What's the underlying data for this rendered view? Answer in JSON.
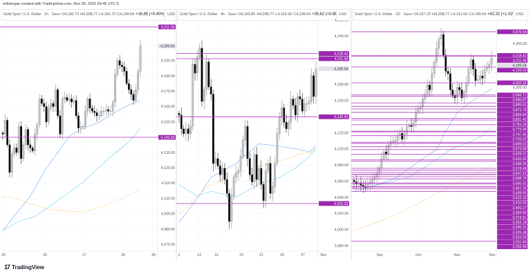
{
  "attribution": "erikbregar created with TradingView.com, Nov 28, 2025 09:45 UTC-5",
  "footer": {
    "logo_text": "TradingView",
    "logo_icon": "tradingview-logo-icon"
  },
  "colors": {
    "level_line": "#b84bc4",
    "level_label": "#9c27b0",
    "bull_candle": "#c4c6cc",
    "bear_candle": "#000000",
    "ma_blue": "#7fb8f0",
    "ma_cyan": "#7ed6ef",
    "ma_orange": "#ffd9a0",
    "last_price_label": "#e0e3eb",
    "grid": "#f0f3fa"
  },
  "chart_data": [
    {
      "type": "candlestick",
      "title": "Gold Spot / U.S. Dollar · 1h · Saxo",
      "open": "O4,182.73",
      "high": "H4,208.77",
      "low": "L4,182.73",
      "close": "C4,199.54",
      "change": "+16.85 (+0.40%)",
      "currency": "USD",
      "last_price": "4,199.54",
      "y_ticks": [
        "4,200.00",
        "4,190.00",
        "4,180.00",
        "4,170.00",
        "4,160.00",
        "4,150.00",
        "4,130.00",
        "4,120.00",
        "4,110.00",
        "4,100.00",
        "4,090.00",
        "4,080.00",
        "4,070.00"
      ],
      "x_ticks": [
        "25",
        "26",
        "27",
        "28",
        "30"
      ],
      "levels": [
        "4,218.42",
        "4,211.99",
        "4,139.93"
      ],
      "grid": true,
      "closes": [
        4142,
        4151,
        4135,
        4117,
        4129,
        4133,
        4130,
        4147,
        4126,
        4135,
        4145,
        4135,
        4133,
        4131,
        4142,
        4148,
        4165,
        4162,
        4160,
        4150,
        4159,
        4162,
        4160,
        4171,
        4154,
        4142,
        4165,
        4166,
        4164,
        4165,
        4163,
        4164,
        4154,
        4146,
        4147,
        4147,
        4157,
        4165,
        4159,
        4157,
        4156,
        4154,
        4154,
        4157,
        4157,
        4158,
        4157,
        4157,
        4163,
        4181,
        4190,
        4187,
        4186,
        4183,
        4175,
        4171,
        4168,
        4164,
        4171,
        4183,
        4199.54
      ],
      "moving_averages": [
        {
          "color": "#7fb8f0",
          "points": [
            [
              0,
              4079.1
            ],
            [
              12,
              4101.6
            ],
            [
              19,
              4119.7
            ],
            [
              29,
              4140.7
            ],
            [
              34,
              4145.2
            ],
            [
              42,
              4149.7
            ],
            [
              50,
              4157.2
            ],
            [
              56,
              4161.7
            ],
            [
              60,
              4163.9
            ]
          ]
        },
        {
          "color": "#7ed6ef",
          "points": [
            [
              0,
              4079.1
            ],
            [
              7,
              4085.1
            ],
            [
              14,
              4088.1
            ],
            [
              24,
              4098.6
            ],
            [
              35,
              4110.6
            ],
            [
              47,
              4127.2
            ],
            [
              55,
              4136.9
            ],
            [
              60,
              4145.9
            ]
          ]
        },
        {
          "color": "#ffd9a0",
          "points": [
            [
              0,
              4100.9
            ],
            [
              3,
              4101.3
            ],
            [
              11,
              4097.1
            ],
            [
              21,
              4092.6
            ],
            [
              35,
              4091.1
            ],
            [
              45,
              4095.6
            ],
            [
              52,
              4100.1
            ],
            [
              60,
              4106.1
            ]
          ]
        }
      ]
    },
    {
      "type": "candlestick",
      "title": "Gold Spot / U.S. Dollar · 4h · Saxo",
      "open": "O4,163.85",
      "high": "H4,208.77",
      "low": "L4,162.93",
      "close": "C4,199.54",
      "change": "+35.62 (+0.86%)",
      "currency": "USD",
      "last_price": "4,199.54",
      "y_ticks": [
        "4,260.00",
        "4,240.00",
        "4,220.00",
        "4,200.00",
        "4,180.00",
        "4,160.00",
        "4,140.00",
        "4,120.00",
        "4,100.00",
        "4,080.00",
        "4,060.00",
        "4,040.00",
        "4,020.00",
        "4,000.00",
        "3,980.00"
      ],
      "x_ticks": [
        "1",
        "13",
        "16",
        "19",
        "21",
        "25",
        "27",
        "Dec"
      ],
      "levels": [
        "4,218.42",
        "4,211.99",
        "4,139.93",
        "4,032.32"
      ],
      "grid": true,
      "closes": [
        4142,
        4125,
        4119,
        4125,
        4119,
        4128,
        4205,
        4194,
        4214,
        4225,
        4159,
        4174,
        4208,
        4177,
        4168,
        4082,
        4088,
        4079,
        4068,
        4076,
        4062,
        4045,
        4010,
        4042,
        4065,
        4070,
        4073,
        4091,
        4111,
        4128,
        4088,
        4068,
        4059,
        4093,
        4062,
        4076,
        4056,
        4036,
        4073,
        4082,
        4045,
        4053,
        4082,
        4119,
        4139,
        4151,
        4133,
        4125,
        4133,
        4162,
        4154,
        4142,
        4165,
        4162,
        4147,
        4156,
        4156,
        4159,
        4191,
        4165,
        4199.54
      ],
      "moving_averages": [
        {
          "color": "#7fb8f0",
          "points": [
            [
              0,
              4008.8
            ],
            [
              8,
              4038.9
            ],
            [
              14,
              4064.7
            ],
            [
              25,
              4082.0
            ],
            [
              35,
              4106.4
            ],
            [
              44,
              4103.5
            ],
            [
              53,
              4099.2
            ],
            [
              57,
              4096.3
            ],
            [
              60,
              4103.5
            ]
          ]
        },
        {
          "color": "#7ed6ef",
          "points": [
            [
              0,
              4055.6
            ],
            [
              8,
              4041.8
            ],
            [
              14,
              4047.5
            ],
            [
              25,
              4040.4
            ],
            [
              35,
              4056.1
            ],
            [
              44,
              4064.7
            ],
            [
              51,
              4076.2
            ],
            [
              57,
              4090.6
            ],
            [
              60,
              4100.6
            ]
          ]
        },
        {
          "color": "#ffd9a0",
          "points": [
            [
              0,
              4018.8
            ],
            [
              8,
              4041.8
            ],
            [
              14,
              4056.1
            ],
            [
              25,
              4069.0
            ],
            [
              35,
              4079.1
            ],
            [
              44,
              4084.8
            ],
            [
              53,
              4093.4
            ],
            [
              60,
              4097.7
            ]
          ]
        }
      ]
    },
    {
      "type": "candlestick",
      "title": "Gold Spot / U.S. Dollar · 1D · Saxo",
      "open": "O4,157.22",
      "high": "H4,208.77",
      "low": "L4,151.56",
      "close": "C4,199.54",
      "change": "+42.32 (+1.02%)",
      "currency": "USD",
      "last_price": "4,199.54",
      "y_ticks": [
        "4,400.00",
        "4,300.00",
        "4,200.00",
        "4,100.00",
        "4,000.00"
      ],
      "x_ticks": [
        "Sep",
        "Oct",
        "Nov",
        "Dec"
      ],
      "levels": [
        "4,379.54",
        "4,218.42",
        "4,211.99",
        "4,139.93",
        "4,032.32",
        "3,949.71",
        "3,940.87",
        "3,895.51",
        "3,871.79",
        "3,854.64",
        "3,831.45",
        "3,791.16",
        "3,779.34",
        "3,747.05",
        "3,703.02",
        "3,699.53",
        "3,673.06",
        "3,628.31",
        "3,620.93",
        "3,598.03",
        "3,578.49",
        "3,547.21",
        "3,508.70",
        "3,500.02",
        "3,451.15",
        "3,438.93",
        "3,423.10",
        "3,410.50",
        "3,409.27",
        "3,394.45",
        "3,378.91",
        "3,352.18",
        "3,345.31",
        "3,326.38",
        "3,323.55",
        "3,311.60",
        "3,293.99"
      ],
      "unlabeled_levels": [
        2956
      ],
      "grid": true,
      "closes": [
        3360,
        3344,
        3352,
        3336,
        3329,
        3321,
        3344,
        3360,
        3376,
        3391,
        3422,
        3454,
        3516,
        3563,
        3547,
        3610,
        3634,
        3634,
        3641,
        3673,
        3688,
        3649,
        3688,
        3735,
        3743,
        3735,
        3766,
        3829,
        3860,
        3868,
        3923,
        3954,
        4017,
        3985,
        4095,
        4173,
        4267,
        4330,
        4361,
        4220,
        4111,
        4095,
        3985,
        3946,
        3931,
        4001,
        3985,
        3931,
        3970,
        4032,
        4126,
        4189,
        4126,
        4048,
        4056,
        4079,
        4064,
        4126,
        4134,
        4158,
        4199.54
      ],
      "moving_averages": [
        {
          "color": "#7fb8f0",
          "points": [
            [
              0,
              3297
            ],
            [
              11,
              3344
            ],
            [
              19,
              3391
            ],
            [
              29,
              3508
            ],
            [
              36,
              3579
            ],
            [
              40,
              3704
            ],
            [
              45,
              3829
            ],
            [
              50,
              3892
            ],
            [
              56,
              3954
            ],
            [
              60,
              3993
            ]
          ]
        },
        {
          "color": "#7ed6ef",
          "points": [
            [
              0,
              3297
            ],
            [
              14,
              3352
            ],
            [
              24,
              3391
            ],
            [
              35,
              3501
            ],
            [
              42,
              3579
            ],
            [
              50,
              3626
            ],
            [
              56,
              3673
            ],
            [
              60,
              3730
            ]
          ]
        },
        {
          "color": "#ffd9a0",
          "points": [
            [
              0,
              3028
            ],
            [
              9,
              3078
            ],
            [
              19,
              3141
            ],
            [
              29,
              3219
            ],
            [
              40,
              3313
            ],
            [
              50,
              3391
            ],
            [
              60,
              3469
            ]
          ]
        }
      ]
    }
  ]
}
